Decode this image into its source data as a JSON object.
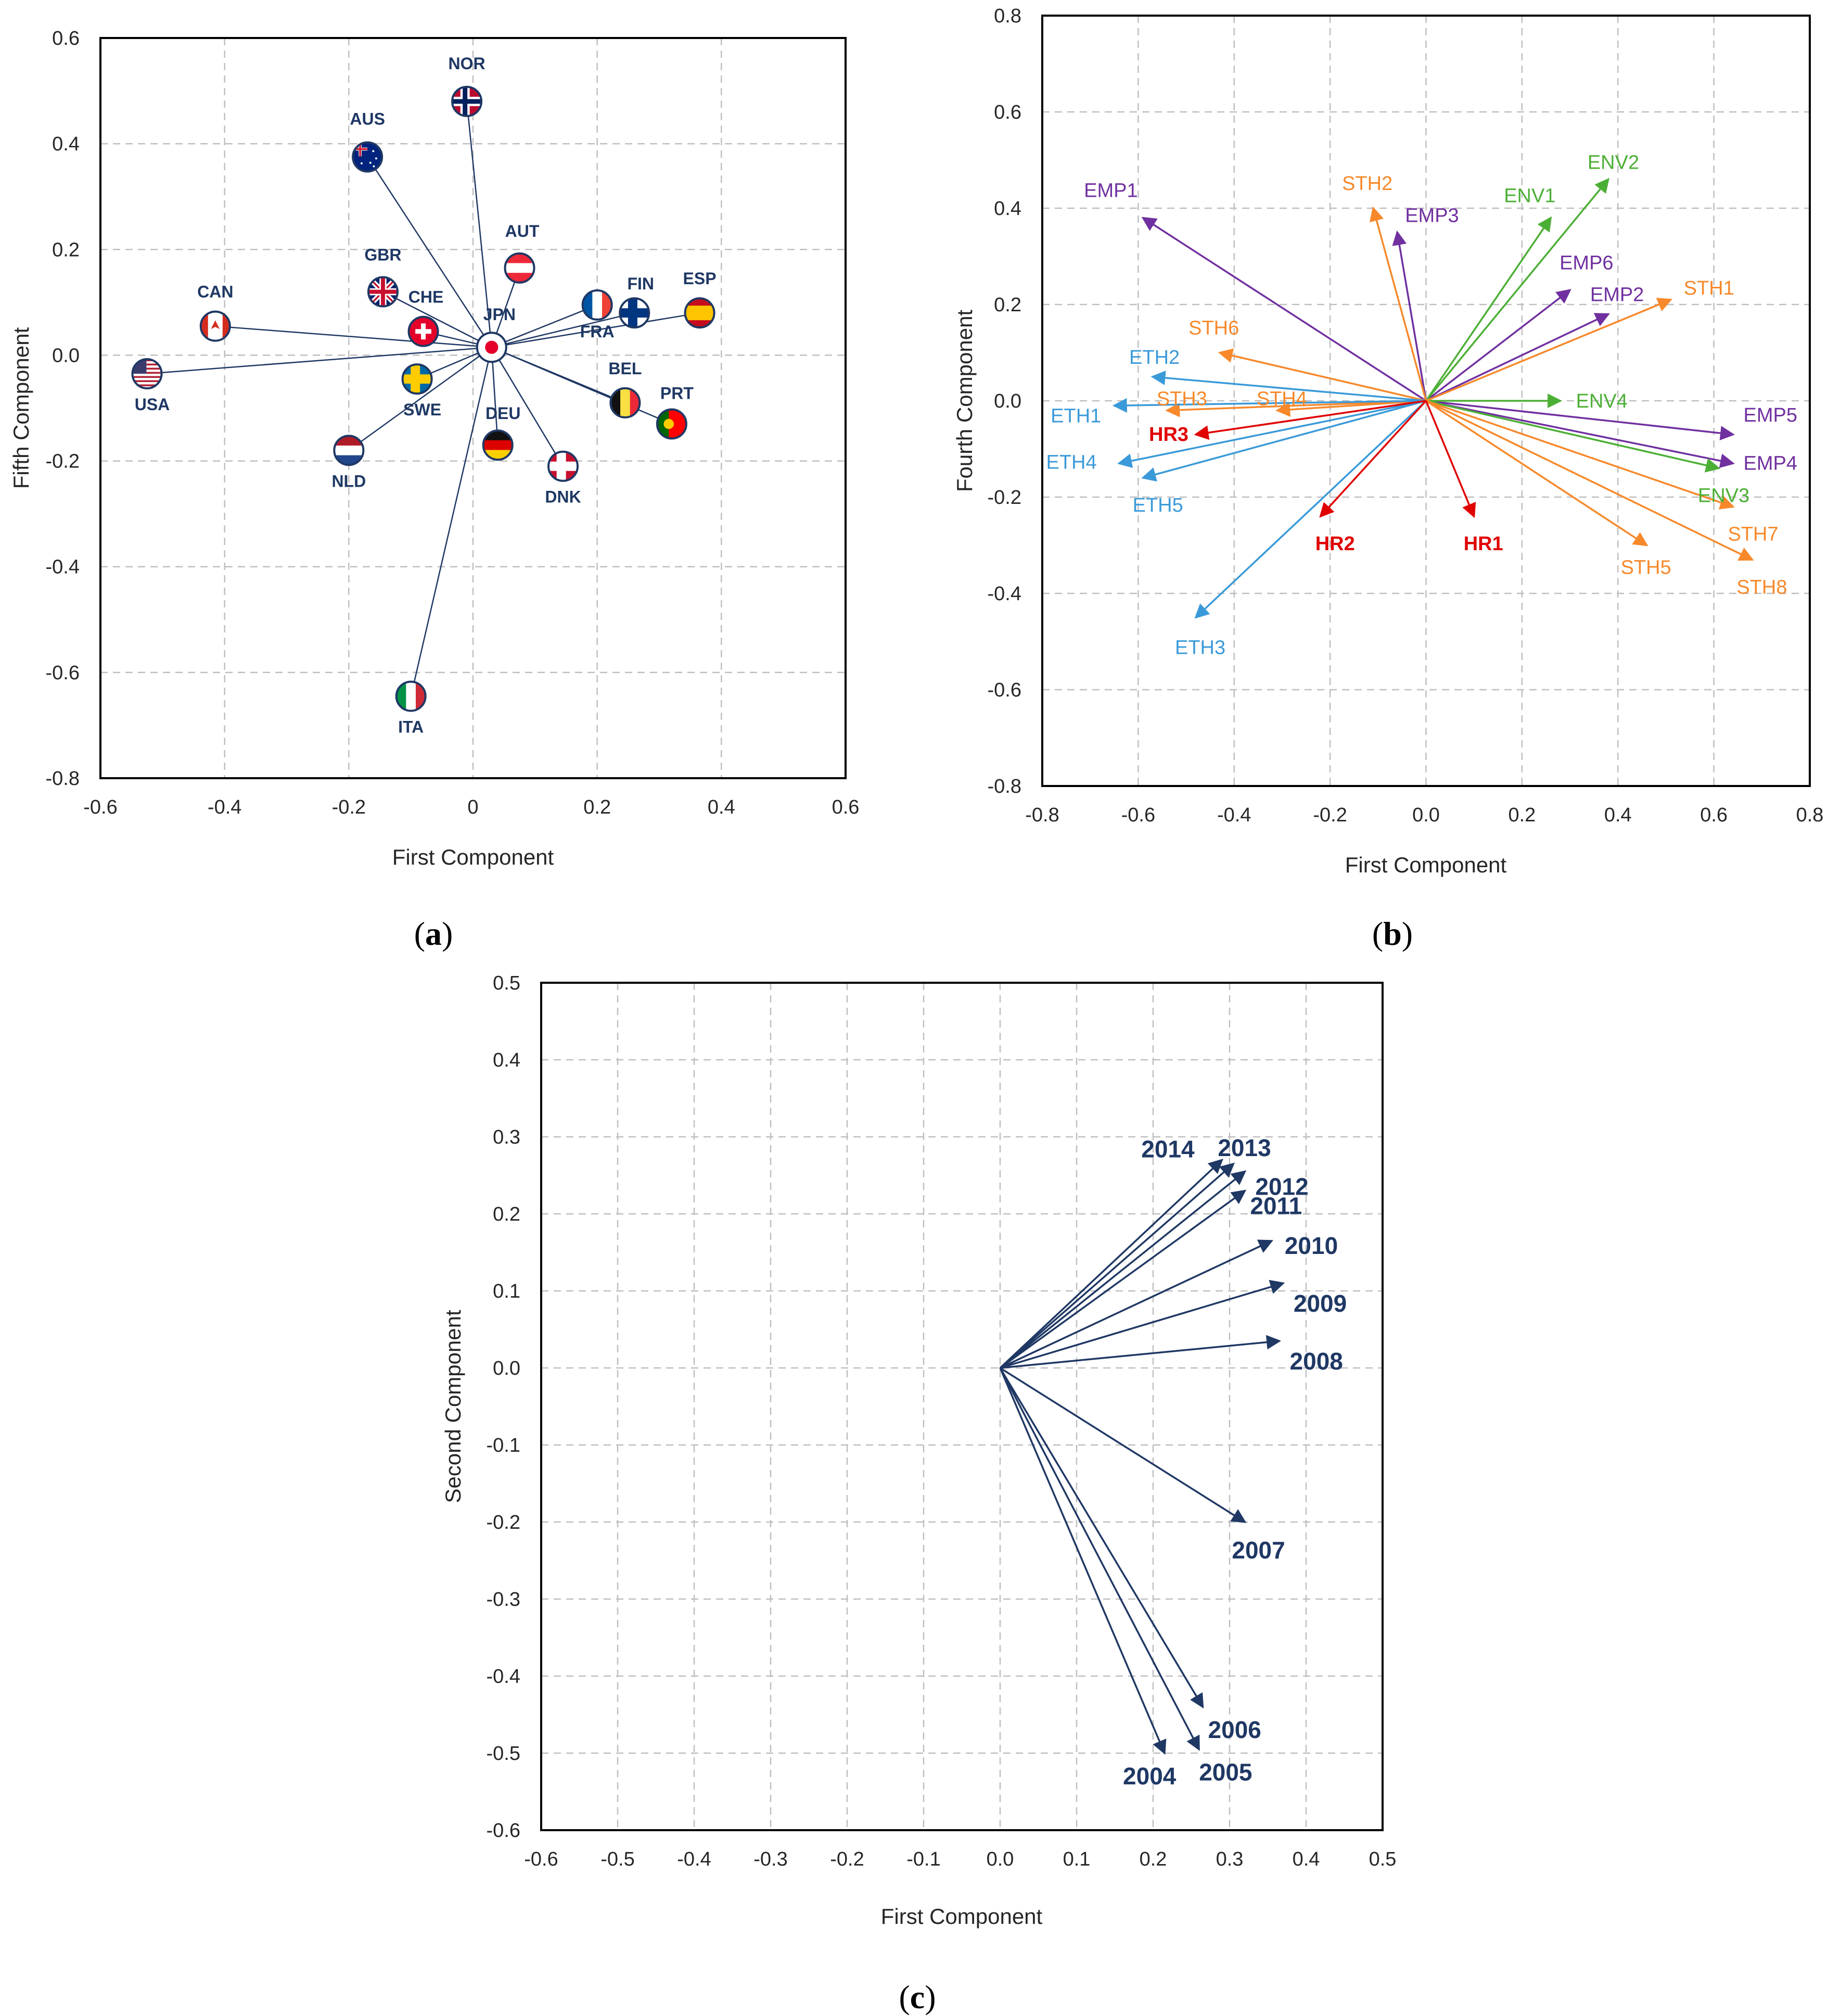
{
  "chart_data": [
    {
      "type": "scatter",
      "panel_label": "a",
      "title": "",
      "xlabel": "First Component",
      "ylabel": "Fifth Component",
      "xlim": [
        -0.6,
        0.6
      ],
      "ylim": [
        -0.8,
        0.6
      ],
      "xticks": [
        "-0.6",
        "-0.4",
        "-0.2",
        "0",
        "0.2",
        "0.4",
        "0.6"
      ],
      "yticks": [
        "0.6",
        "0.4",
        "0.2",
        "0.0",
        "-0.2",
        "-0.4",
        "-0.6",
        "-0.8"
      ],
      "grid": true,
      "origin": [
        0.03,
        0.015
      ],
      "series": [
        {
          "name": "NOR",
          "x": -0.01,
          "y": 0.48,
          "flag": "nor"
        },
        {
          "name": "AUS",
          "x": -0.17,
          "y": 0.375,
          "flag": "aus"
        },
        {
          "name": "AUT",
          "x": 0.075,
          "y": 0.165,
          "flag": "aut"
        },
        {
          "name": "GBR",
          "x": -0.145,
          "y": 0.12,
          "flag": "gbr"
        },
        {
          "name": "CHE",
          "x": -0.08,
          "y": 0.045,
          "flag": "che"
        },
        {
          "name": "CAN",
          "x": -0.415,
          "y": 0.055,
          "flag": "can"
        },
        {
          "name": "JPN",
          "x": 0.03,
          "y": 0.015,
          "flag": "jpn"
        },
        {
          "name": "FRA",
          "x": 0.2,
          "y": 0.095,
          "flag": "fra"
        },
        {
          "name": "FIN",
          "x": 0.26,
          "y": 0.08,
          "flag": "fin"
        },
        {
          "name": "ESP",
          "x": 0.365,
          "y": 0.08,
          "flag": "esp"
        },
        {
          "name": "USA",
          "x": -0.525,
          "y": -0.035,
          "flag": "usa"
        },
        {
          "name": "SWE",
          "x": -0.09,
          "y": -0.045,
          "flag": "swe"
        },
        {
          "name": "BEL",
          "x": 0.245,
          "y": -0.09,
          "flag": "bel"
        },
        {
          "name": "PRT",
          "x": 0.32,
          "y": -0.13,
          "flag": "prt"
        },
        {
          "name": "DEU",
          "x": 0.04,
          "y": -0.17,
          "flag": "deu"
        },
        {
          "name": "NLD",
          "x": -0.2,
          "y": -0.18,
          "flag": "nld"
        },
        {
          "name": "DNK",
          "x": 0.145,
          "y": -0.21,
          "flag": "dnk"
        },
        {
          "name": "ITA",
          "x": -0.1,
          "y": -0.645,
          "flag": "ita"
        }
      ]
    },
    {
      "type": "scatter",
      "panel_label": "b",
      "title": "",
      "xlabel": "First Component",
      "ylabel": "Fourth Component",
      "xlim": [
        -0.8,
        0.8
      ],
      "ylim": [
        -0.8,
        0.8
      ],
      "xticks": [
        "-0.8",
        "-0.6",
        "-0.4",
        "-0.2",
        "0.0",
        "0.2",
        "0.4",
        "0.6",
        "0.8"
      ],
      "yticks": [
        "0.8",
        "0.6",
        "0.4",
        "0.2",
        "0.0",
        "-0.2",
        "-0.4",
        "-0.6",
        "-0.8"
      ],
      "grid": true,
      "colors": {
        "EMP": "#7030a0",
        "ENV": "#4caf35",
        "STH": "#f7892b",
        "ETH": "#3a9ad9",
        "HR": "#e00000"
      },
      "series": [
        {
          "name": "EMP1",
          "group": "EMP",
          "x": -0.59,
          "y": 0.38
        },
        {
          "name": "EMP2",
          "group": "EMP",
          "x": 0.38,
          "y": 0.18
        },
        {
          "name": "EMP3",
          "group": "EMP",
          "x": -0.06,
          "y": 0.35
        },
        {
          "name": "EMP4",
          "group": "EMP",
          "x": 0.64,
          "y": -0.13
        },
        {
          "name": "EMP5",
          "group": "EMP",
          "x": 0.64,
          "y": -0.07
        },
        {
          "name": "EMP6",
          "group": "EMP",
          "x": 0.3,
          "y": 0.23
        },
        {
          "name": "ENV1",
          "group": "ENV",
          "x": 0.26,
          "y": 0.38
        },
        {
          "name": "ENV2",
          "group": "ENV",
          "x": 0.38,
          "y": 0.46
        },
        {
          "name": "ENV3",
          "group": "ENV",
          "x": 0.61,
          "y": -0.14
        },
        {
          "name": "ENV4",
          "group": "ENV",
          "x": 0.28,
          "y": 0.0
        },
        {
          "name": "STH1",
          "group": "STH",
          "x": 0.51,
          "y": 0.21
        },
        {
          "name": "STH2",
          "group": "STH",
          "x": -0.11,
          "y": 0.4
        },
        {
          "name": "STH3",
          "group": "STH",
          "x": -0.54,
          "y": -0.02
        },
        {
          "name": "STH4",
          "group": "STH",
          "x": -0.31,
          "y": -0.02
        },
        {
          "name": "STH5",
          "group": "STH",
          "x": 0.46,
          "y": -0.3
        },
        {
          "name": "STH6",
          "group": "STH",
          "x": -0.43,
          "y": 0.1
        },
        {
          "name": "STH7",
          "group": "STH",
          "x": 0.64,
          "y": -0.22
        },
        {
          "name": "STH8",
          "group": "STH",
          "x": 0.68,
          "y": -0.33
        },
        {
          "name": "ETH1",
          "group": "ETH",
          "x": -0.65,
          "y": -0.01
        },
        {
          "name": "ETH2",
          "group": "ETH",
          "x": -0.57,
          "y": 0.05
        },
        {
          "name": "ETH3",
          "group": "ETH",
          "x": -0.48,
          "y": -0.45
        },
        {
          "name": "ETH4",
          "group": "ETH",
          "x": -0.64,
          "y": -0.13
        },
        {
          "name": "ETH5",
          "group": "ETH",
          "x": -0.59,
          "y": -0.16
        },
        {
          "name": "HR1",
          "group": "HR",
          "x": 0.1,
          "y": -0.24
        },
        {
          "name": "HR2",
          "group": "HR",
          "x": -0.22,
          "y": -0.24
        },
        {
          "name": "HR3",
          "group": "HR",
          "x": -0.48,
          "y": -0.07
        }
      ]
    },
    {
      "type": "scatter",
      "panel_label": "c",
      "title": "",
      "xlabel": "First Component",
      "ylabel": "Second Component",
      "xlim": [
        -0.6,
        0.5
      ],
      "ylim": [
        -0.6,
        0.5
      ],
      "xticks": [
        "-0.6",
        "-0.5",
        "-0.4",
        "-0.3",
        "-0.2",
        "-0.1",
        "0.0",
        "0.1",
        "0.2",
        "0.3",
        "0.4",
        "0.5"
      ],
      "yticks": [
        "0.5",
        "0.4",
        "0.3",
        "0.2",
        "0.1",
        "0.0",
        "-0.1",
        "-0.2",
        "-0.3",
        "-0.4",
        "-0.5",
        "-0.6"
      ],
      "grid": true,
      "color": "#1f3864",
      "series": [
        {
          "name": "2004",
          "x": 0.215,
          "y": -0.5
        },
        {
          "name": "2005",
          "x": 0.26,
          "y": -0.495
        },
        {
          "name": "2006",
          "x": 0.265,
          "y": -0.44
        },
        {
          "name": "2007",
          "x": 0.32,
          "y": -0.2
        },
        {
          "name": "2008",
          "x": 0.365,
          "y": 0.035
        },
        {
          "name": "2009",
          "x": 0.37,
          "y": 0.11
        },
        {
          "name": "2010",
          "x": 0.355,
          "y": 0.165
        },
        {
          "name": "2011",
          "x": 0.32,
          "y": 0.23
        },
        {
          "name": "2012",
          "x": 0.32,
          "y": 0.255
        },
        {
          "name": "2013",
          "x": 0.305,
          "y": 0.265
        },
        {
          "name": "2014",
          "x": 0.29,
          "y": 0.27
        }
      ]
    }
  ]
}
